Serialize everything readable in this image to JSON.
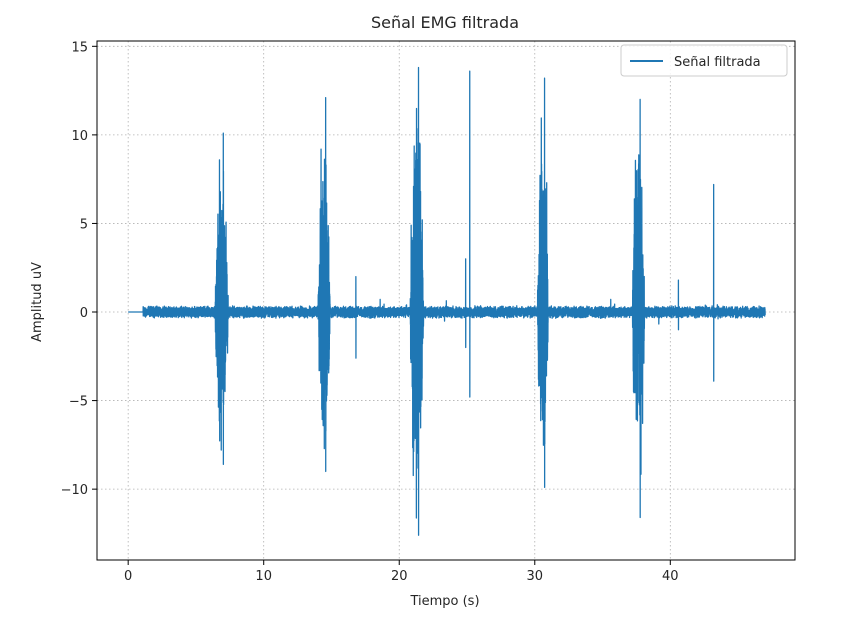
{
  "chart_data": {
    "type": "line",
    "title": "Señal EMG filtrada",
    "xlabel": "Tiempo (s)",
    "ylabel": "Amplitud uV",
    "xlim": [
      -2.3,
      49.2
    ],
    "ylim": [
      -14.0,
      15.3
    ],
    "xticks": [
      0,
      10,
      20,
      30,
      40
    ],
    "yticks": [
      -10,
      -5,
      0,
      5,
      10,
      15
    ],
    "xtick_labels": [
      "0",
      "10",
      "20",
      "30",
      "40"
    ],
    "ytick_labels": [
      "−10",
      "−5",
      "0",
      "5",
      "10",
      "15"
    ],
    "grid": true,
    "legend": {
      "position": "top-right"
    },
    "series": [
      {
        "name": "Señal filtrada",
        "color": "#1f77b4",
        "x_start": 0,
        "x_end": 47,
        "onset": 1.1,
        "baseline_amplitude": 0.3,
        "bursts": [
          {
            "t0": 6.4,
            "t1": 7.4,
            "max": 10.1,
            "min": -8.6
          },
          {
            "t0": 14.0,
            "t1": 14.9,
            "max": 12.1,
            "min": -9.0
          },
          {
            "t0": 20.8,
            "t1": 21.8,
            "max": 13.8,
            "min": -12.6
          },
          {
            "t0": 30.2,
            "t1": 31.0,
            "max": 13.2,
            "min": -9.9
          },
          {
            "t0": 37.2,
            "t1": 38.1,
            "max": 12.0,
            "min": -11.6
          }
        ],
        "spikes": [
          {
            "t": 16.8,
            "max": 2.0,
            "min": -2.6
          },
          {
            "t": 24.9,
            "max": 3.0,
            "min": -2.0
          },
          {
            "t": 25.2,
            "max": 13.6,
            "min": -4.8
          },
          {
            "t": 40.6,
            "max": 1.8,
            "min": -1.0
          },
          {
            "t": 43.2,
            "max": 7.2,
            "min": -3.9
          }
        ]
      }
    ]
  }
}
